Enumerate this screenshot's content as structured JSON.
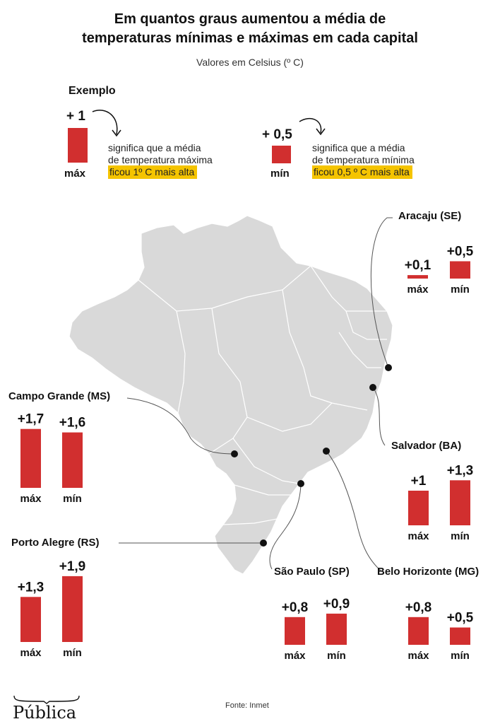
{
  "header": {
    "title_line1": "Em quantos graus aumentou a média de",
    "title_line2": "temperaturas mínimas e máximas em cada capital",
    "subtitle": "Valores em Celsius (º C)"
  },
  "example": {
    "heading": "Exemplo",
    "max": {
      "value_label": "+ 1",
      "bar_label": "máx",
      "value": 1,
      "note_line1": "significa que a média",
      "note_line2": "de temperatura máxima",
      "note_highlight": "ficou 1º C mais alta"
    },
    "min": {
      "value_label": "+ 0,5",
      "bar_label": "mín",
      "value": 0.5,
      "note_line1": "significa que a média",
      "note_line2": "de temperatura mínima",
      "note_highlight": "ficou 0,5 º C mais alta"
    }
  },
  "colors": {
    "bar": "#d12f2f",
    "map_fill": "#d9d9d9",
    "map_border": "#ffffff",
    "highlight": "#f5c400",
    "leader_line": "#555555"
  },
  "chart_data": {
    "type": "bar",
    "categories": [
      "máx",
      "mín"
    ],
    "series": [
      {
        "name": "Aracaju (SE)",
        "values": [
          0.1,
          0.5
        ],
        "labels": [
          "+0,1",
          "+0,5"
        ]
      },
      {
        "name": "Campo Grande (MS)",
        "values": [
          1.7,
          1.6
        ],
        "labels": [
          "+1,7",
          "+1,6"
        ]
      },
      {
        "name": "Salvador (BA)",
        "values": [
          1.0,
          1.3
        ],
        "labels": [
          "+1",
          "+1,3"
        ]
      },
      {
        "name": "Porto Alegre (RS)",
        "values": [
          1.3,
          1.9
        ],
        "labels": [
          "+1,3",
          "+1,9"
        ]
      },
      {
        "name": "São Paulo (SP)",
        "values": [
          0.8,
          0.9
        ],
        "labels": [
          "+0,8",
          "+0,9"
        ]
      },
      {
        "name": "Belo Horizonte (MG)",
        "values": [
          0.8,
          0.5
        ],
        "labels": [
          "+0,8",
          "+0,5"
        ]
      }
    ],
    "ylim": [
      0,
      1.9
    ],
    "grid": false,
    "legend": "none"
  },
  "footer": {
    "source": "Fonte: Inmet",
    "logo_text": "Pública"
  }
}
